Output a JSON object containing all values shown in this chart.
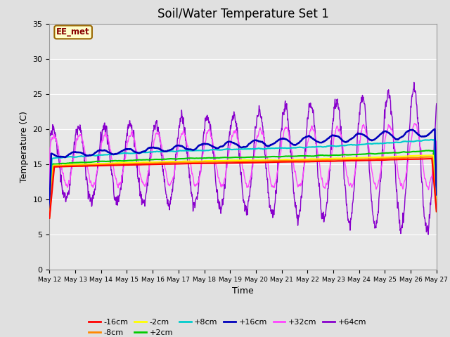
{
  "title": "Soil/Water Temperature Set 1",
  "xlabel": "Time",
  "ylabel": "Temperature (C)",
  "ylim": [
    0,
    35
  ],
  "yticks": [
    0,
    5,
    10,
    15,
    20,
    25,
    30,
    35
  ],
  "x_tick_labels": [
    "May 12",
    "May 13",
    "May 14",
    "May 15",
    "May 16",
    "May 17",
    "May 18",
    "May 19",
    "May 20",
    "May 21",
    "May 22",
    "May 23",
    "May 24",
    "May 25",
    "May 26",
    "May 27"
  ],
  "background_color": "#e0e0e0",
  "plot_bg": "#e8e8e8",
  "annotation_text": "EE_met",
  "annotation_bg": "#ffffcc",
  "annotation_border": "#996600",
  "legend_entries": [
    "-16cm",
    "-8cm",
    "-2cm",
    "+2cm",
    "+8cm",
    "+16cm",
    "+32cm",
    "+64cm"
  ],
  "line_colors": {
    "-16cm": "#ff0000",
    "-8cm": "#ff8800",
    "-2cm": "#ffff00",
    "+2cm": "#00cc00",
    "+8cm": "#00cccc",
    "+16cm": "#0000bb",
    "+32cm": "#ff44ff",
    "+64cm": "#8800cc"
  },
  "grid_color": "#ffffff",
  "title_fontsize": 12
}
